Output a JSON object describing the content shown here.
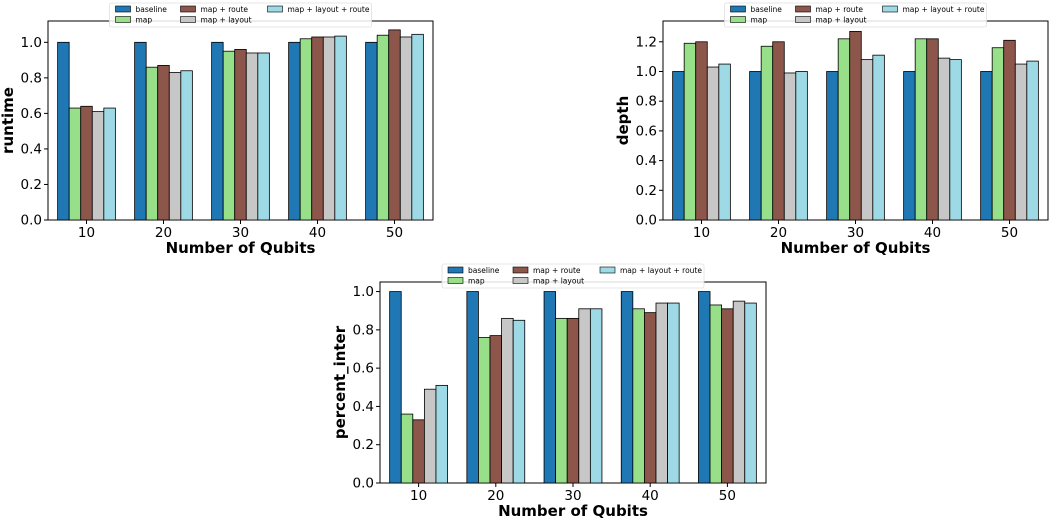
{
  "chart_data": [
    {
      "type": "bar",
      "xlabel": "Number of Qubits",
      "ylabel": "runtime",
      "categories": [
        "10",
        "20",
        "30",
        "40",
        "50"
      ],
      "ylim": [
        0,
        1.12
      ],
      "yticks": [
        "0.0",
        "0.2",
        "0.4",
        "0.6",
        "0.8",
        "1.0"
      ],
      "legend_position": "top-center",
      "series": [
        {
          "name": "baseline",
          "color": "#1f77b4",
          "values": [
            1.0,
            1.0,
            1.0,
            1.0,
            1.0
          ]
        },
        {
          "name": "map",
          "color": "#98df8a",
          "values": [
            0.63,
            0.86,
            0.95,
            1.02,
            1.04
          ]
        },
        {
          "name": "map + route",
          "color": "#8c564b",
          "values": [
            0.64,
            0.87,
            0.96,
            1.03,
            1.07
          ]
        },
        {
          "name": "map + layout",
          "color": "#c7c7c7",
          "values": [
            0.61,
            0.83,
            0.94,
            1.03,
            1.03
          ]
        },
        {
          "name": "map + layout + route",
          "color": "#9edae5",
          "values": [
            0.63,
            0.84,
            0.94,
            1.035,
            1.045
          ]
        }
      ]
    },
    {
      "type": "bar",
      "xlabel": "Number of Qubits",
      "ylabel": "depth",
      "categories": [
        "10",
        "20",
        "30",
        "40",
        "50"
      ],
      "ylim": [
        0,
        1.34
      ],
      "yticks": [
        "0.0",
        "0.2",
        "0.4",
        "0.6",
        "0.8",
        "1.0",
        "1.2"
      ],
      "legend_position": "top-center",
      "series": [
        {
          "name": "baseline",
          "color": "#1f77b4",
          "values": [
            1.0,
            1.0,
            1.0,
            1.0,
            1.0
          ]
        },
        {
          "name": "map",
          "color": "#98df8a",
          "values": [
            1.19,
            1.17,
            1.22,
            1.22,
            1.16
          ]
        },
        {
          "name": "map + route",
          "color": "#8c564b",
          "values": [
            1.2,
            1.2,
            1.27,
            1.22,
            1.21
          ]
        },
        {
          "name": "map + layout",
          "color": "#c7c7c7",
          "values": [
            1.03,
            0.99,
            1.08,
            1.09,
            1.05
          ]
        },
        {
          "name": "map + layout + route",
          "color": "#9edae5",
          "values": [
            1.05,
            1.0,
            1.11,
            1.08,
            1.07
          ]
        }
      ]
    },
    {
      "type": "bar",
      "xlabel": "Number of Qubits",
      "ylabel": "percent_inter",
      "categories": [
        "10",
        "20",
        "30",
        "40",
        "50"
      ],
      "ylim": [
        0,
        1.05
      ],
      "yticks": [
        "0.0",
        "0.2",
        "0.4",
        "0.6",
        "0.8",
        "1.0"
      ],
      "legend_position": "top-center",
      "series": [
        {
          "name": "baseline",
          "color": "#1f77b4",
          "values": [
            1.0,
            1.0,
            1.0,
            1.0,
            1.0
          ]
        },
        {
          "name": "map",
          "color": "#98df8a",
          "values": [
            0.36,
            0.76,
            0.86,
            0.91,
            0.93
          ]
        },
        {
          "name": "map + route",
          "color": "#8c564b",
          "values": [
            0.33,
            0.77,
            0.86,
            0.89,
            0.91
          ]
        },
        {
          "name": "map + layout",
          "color": "#c7c7c7",
          "values": [
            0.49,
            0.86,
            0.91,
            0.94,
            0.95
          ]
        },
        {
          "name": "map + layout + route",
          "color": "#9edae5",
          "values": [
            0.51,
            0.85,
            0.91,
            0.94,
            0.94
          ]
        }
      ]
    }
  ]
}
